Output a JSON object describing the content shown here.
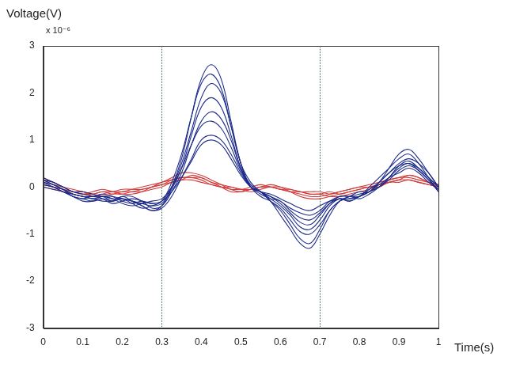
{
  "chart_data": {
    "type": "line",
    "y_label": "Voltage(V)",
    "y_multiplier": "x 10⁻⁶",
    "x_label": "Time(s)",
    "xlim": [
      0,
      1
    ],
    "xticks": [
      0,
      0.1,
      0.2,
      0.3,
      0.4,
      0.5,
      0.6,
      0.7,
      0.8,
      0.9,
      1
    ],
    "ylim": [
      -3,
      3
    ],
    "yticks": [
      -3,
      -2,
      -1,
      0,
      1,
      2,
      3
    ],
    "grid": false,
    "vertical_lines": [
      0.3,
      0.7
    ],
    "x": [
      0,
      0.025,
      0.05,
      0.075,
      0.1,
      0.125,
      0.15,
      0.175,
      0.2,
      0.225,
      0.25,
      0.275,
      0.3,
      0.325,
      0.35,
      0.375,
      0.4,
      0.425,
      0.45,
      0.475,
      0.5,
      0.525,
      0.55,
      0.575,
      0.6,
      0.625,
      0.65,
      0.675,
      0.7,
      0.725,
      0.75,
      0.775,
      0.8,
      0.825,
      0.85,
      0.875,
      0.9,
      0.925,
      0.95,
      0.975,
      1
    ],
    "series": [
      {
        "color": "#1c2a8a",
        "values": [
          0.1,
          0.0,
          -0.1,
          -0.2,
          -0.25,
          -0.3,
          -0.25,
          -0.3,
          -0.2,
          -0.3,
          -0.4,
          -0.5,
          -0.4,
          0.0,
          0.6,
          1.5,
          2.3,
          2.6,
          2.3,
          1.4,
          0.5,
          0.0,
          -0.1,
          -0.3,
          -0.6,
          -0.9,
          -1.2,
          -1.3,
          -1.0,
          -0.6,
          -0.3,
          -0.2,
          -0.1,
          -0.1,
          0.1,
          0.4,
          0.7,
          0.8,
          0.6,
          0.3,
          0.0
        ]
      },
      {
        "color": "#1c2a8a",
        "values": [
          0.15,
          0.05,
          -0.05,
          -0.15,
          -0.2,
          -0.25,
          -0.2,
          -0.25,
          -0.25,
          -0.35,
          -0.45,
          -0.4,
          -0.3,
          0.1,
          0.7,
          1.5,
          2.2,
          2.4,
          2.1,
          1.3,
          0.5,
          0.1,
          -0.1,
          -0.3,
          -0.5,
          -0.8,
          -1.1,
          -1.2,
          -0.9,
          -0.5,
          -0.3,
          -0.2,
          -0.2,
          0.0,
          0.2,
          0.4,
          0.6,
          0.7,
          0.5,
          0.2,
          -0.1
        ]
      },
      {
        "color": "#1c2a8a",
        "values": [
          0.05,
          0.0,
          -0.1,
          -0.15,
          -0.2,
          -0.2,
          -0.15,
          -0.2,
          -0.3,
          -0.35,
          -0.3,
          -0.35,
          -0.3,
          0.0,
          0.5,
          1.2,
          1.9,
          2.2,
          2.0,
          1.3,
          0.5,
          0.0,
          -0.2,
          -0.3,
          -0.45,
          -0.7,
          -0.95,
          -1.0,
          -0.8,
          -0.5,
          -0.3,
          -0.25,
          -0.2,
          -0.1,
          0.1,
          0.3,
          0.5,
          0.6,
          0.5,
          0.3,
          0.0
        ]
      },
      {
        "color": "#1c2a8a",
        "values": [
          0.2,
          0.1,
          0.0,
          -0.1,
          -0.15,
          -0.2,
          -0.2,
          -0.3,
          -0.25,
          -0.3,
          -0.35,
          -0.4,
          -0.35,
          -0.05,
          0.4,
          1.1,
          1.7,
          1.9,
          1.7,
          1.1,
          0.4,
          0.0,
          -0.1,
          -0.25,
          -0.4,
          -0.6,
          -0.85,
          -0.9,
          -0.7,
          -0.4,
          -0.25,
          -0.3,
          -0.2,
          -0.1,
          0.0,
          0.2,
          0.45,
          0.55,
          0.4,
          0.2,
          0.0
        ]
      },
      {
        "color": "#1c2a8a",
        "values": [
          0.1,
          0.05,
          -0.05,
          -0.2,
          -0.25,
          -0.2,
          -0.25,
          -0.35,
          -0.3,
          -0.25,
          -0.3,
          -0.45,
          -0.4,
          -0.1,
          0.3,
          0.9,
          1.4,
          1.6,
          1.45,
          1.0,
          0.4,
          0.05,
          -0.1,
          -0.2,
          -0.35,
          -0.55,
          -0.75,
          -0.8,
          -0.6,
          -0.35,
          -0.2,
          -0.2,
          -0.25,
          -0.15,
          0.0,
          0.2,
          0.4,
          0.5,
          0.35,
          0.15,
          -0.05
        ]
      },
      {
        "color": "#1c2a8a",
        "values": [
          0.0,
          -0.05,
          -0.1,
          -0.2,
          -0.3,
          -0.3,
          -0.2,
          -0.25,
          -0.35,
          -0.4,
          -0.35,
          -0.3,
          -0.25,
          0.0,
          0.4,
          0.9,
          1.3,
          1.4,
          1.25,
          0.85,
          0.35,
          0.0,
          -0.15,
          -0.25,
          -0.3,
          -0.5,
          -0.65,
          -0.7,
          -0.55,
          -0.35,
          -0.25,
          -0.3,
          -0.2,
          -0.05,
          0.1,
          0.3,
          0.45,
          0.5,
          0.4,
          0.2,
          0.0
        ]
      },
      {
        "color": "#1c2a8a",
        "values": [
          0.15,
          0.1,
          0.0,
          -0.1,
          -0.1,
          -0.15,
          -0.2,
          -0.2,
          -0.25,
          -0.3,
          -0.4,
          -0.5,
          -0.45,
          -0.2,
          0.2,
          0.6,
          1.0,
          1.1,
          1.0,
          0.7,
          0.3,
          0.0,
          -0.1,
          -0.2,
          -0.3,
          -0.45,
          -0.55,
          -0.6,
          -0.5,
          -0.3,
          -0.2,
          -0.2,
          -0.15,
          -0.1,
          0.0,
          0.15,
          0.35,
          0.45,
          0.35,
          0.15,
          -0.1
        ]
      },
      {
        "color": "#1c2a8a",
        "values": [
          0.05,
          0.0,
          -0.05,
          -0.15,
          -0.2,
          -0.25,
          -0.3,
          -0.3,
          -0.2,
          -0.2,
          -0.3,
          -0.35,
          -0.3,
          -0.1,
          0.2,
          0.55,
          0.9,
          1.0,
          0.9,
          0.6,
          0.25,
          0.0,
          -0.1,
          -0.15,
          -0.25,
          -0.35,
          -0.45,
          -0.5,
          -0.4,
          -0.3,
          -0.25,
          -0.25,
          -0.2,
          -0.1,
          0.05,
          0.2,
          0.3,
          0.4,
          0.3,
          0.1,
          -0.05
        ]
      },
      {
        "color": "#d23b3b",
        "values": [
          0.2,
          0.1,
          0.0,
          -0.05,
          -0.1,
          -0.15,
          -0.1,
          -0.15,
          -0.1,
          -0.1,
          -0.05,
          0.0,
          0.1,
          0.15,
          0.2,
          0.2,
          0.15,
          0.05,
          0.0,
          -0.05,
          -0.05,
          -0.05,
          0.0,
          0.0,
          -0.05,
          -0.1,
          -0.15,
          -0.2,
          -0.2,
          -0.15,
          -0.1,
          -0.05,
          0.0,
          0.05,
          0.1,
          0.15,
          0.2,
          0.2,
          0.15,
          0.1,
          0.05
        ]
      },
      {
        "color": "#d23b3b",
        "values": [
          0.1,
          0.05,
          -0.05,
          -0.1,
          -0.15,
          -0.1,
          -0.05,
          -0.1,
          -0.15,
          -0.15,
          -0.1,
          0.0,
          0.05,
          0.1,
          0.15,
          0.25,
          0.2,
          0.1,
          0.05,
          0.0,
          -0.05,
          0.0,
          0.05,
          0.0,
          -0.05,
          -0.1,
          -0.1,
          -0.15,
          -0.15,
          -0.1,
          -0.15,
          -0.1,
          -0.05,
          0.0,
          0.05,
          0.1,
          0.15,
          0.25,
          0.2,
          0.1,
          0.0
        ]
      },
      {
        "color": "#d23b3b",
        "values": [
          0.0,
          -0.05,
          -0.1,
          -0.15,
          -0.2,
          -0.2,
          -0.15,
          -0.1,
          -0.1,
          -0.05,
          0.0,
          0.05,
          0.1,
          0.2,
          0.3,
          0.3,
          0.25,
          0.15,
          0.05,
          -0.05,
          -0.1,
          -0.05,
          0.0,
          0.05,
          0.0,
          -0.1,
          -0.2,
          -0.25,
          -0.25,
          -0.2,
          -0.15,
          -0.1,
          -0.05,
          0.0,
          0.0,
          0.1,
          0.1,
          0.15,
          0.1,
          0.05,
          0.0
        ]
      },
      {
        "color": "#d23b3b",
        "values": [
          0.15,
          0.05,
          0.0,
          -0.1,
          -0.1,
          -0.2,
          -0.2,
          -0.15,
          -0.15,
          -0.1,
          -0.1,
          -0.05,
          0.0,
          0.1,
          0.15,
          0.15,
          0.1,
          0.05,
          0.0,
          0.0,
          -0.05,
          -0.1,
          -0.05,
          0.0,
          -0.05,
          -0.05,
          -0.1,
          -0.15,
          -0.15,
          -0.2,
          -0.2,
          -0.15,
          -0.1,
          -0.05,
          0.05,
          0.1,
          0.15,
          0.15,
          0.1,
          0.05,
          0.0
        ]
      },
      {
        "color": "#d23b3b",
        "values": [
          0.05,
          0.0,
          -0.05,
          -0.1,
          -0.15,
          -0.15,
          -0.1,
          -0.1,
          -0.05,
          -0.05,
          -0.05,
          0.0,
          0.05,
          0.15,
          0.2,
          0.2,
          0.2,
          0.1,
          0.0,
          -0.1,
          -0.1,
          -0.05,
          0.0,
          0.0,
          0.0,
          -0.05,
          -0.1,
          -0.1,
          -0.1,
          -0.15,
          -0.1,
          -0.05,
          0.0,
          0.0,
          0.05,
          0.15,
          0.2,
          0.25,
          0.2,
          0.1,
          0.05
        ]
      }
    ]
  }
}
